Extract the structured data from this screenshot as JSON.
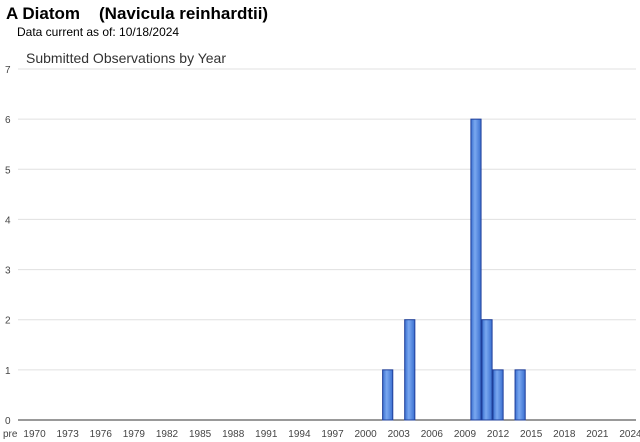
{
  "header": {
    "species": "A Diatom",
    "scientific_name": "(Navicula reinhardtii)",
    "data_current": "Data current as of: 10/18/2024"
  },
  "chart_data": {
    "type": "bar",
    "title": "Submitted Observations by Year",
    "categories": [
      "pre",
      "1970",
      null,
      null,
      "1973",
      null,
      null,
      "1976",
      null,
      null,
      "1979",
      null,
      null,
      "1982",
      null,
      null,
      "1985",
      null,
      null,
      "1988",
      null,
      null,
      "1991",
      null,
      null,
      "1994",
      null,
      null,
      "1997",
      null,
      null,
      "2000",
      null,
      null,
      "2003",
      null,
      null,
      "2006",
      null,
      null,
      "2009",
      null,
      null,
      "2012",
      null,
      null,
      "2015",
      null,
      null,
      "2018",
      null,
      null,
      "2021",
      null,
      null,
      "2024"
    ],
    "values": [
      0,
      0,
      0,
      0,
      0,
      0,
      0,
      0,
      0,
      0,
      0,
      0,
      0,
      0,
      0,
      0,
      0,
      0,
      0,
      0,
      0,
      0,
      0,
      0,
      0,
      0,
      0,
      0,
      0,
      0,
      0,
      0,
      0,
      1,
      0,
      2,
      0,
      0,
      0,
      0,
      0,
      6,
      2,
      1,
      0,
      1,
      0,
      0,
      0,
      0,
      0,
      0,
      0,
      0,
      0,
      0
    ],
    "color": "#4f86e0",
    "ylim": [
      0,
      7
    ],
    "yticks": [
      0,
      1,
      2,
      3,
      4,
      5,
      6,
      7
    ],
    "grid": true
  }
}
